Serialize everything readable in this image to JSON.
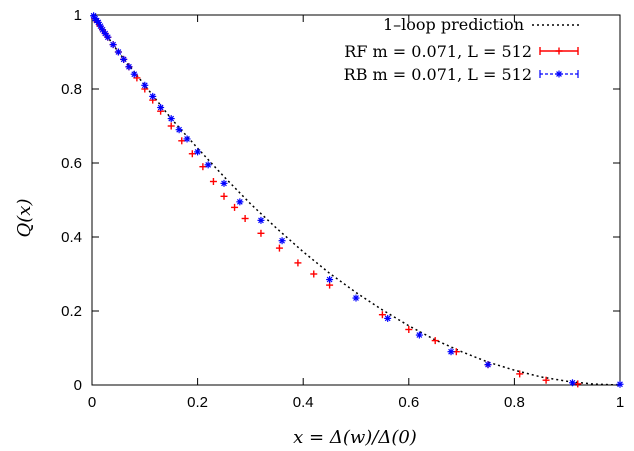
{
  "chart_data": {
    "type": "scatter",
    "xlabel": "x = Δ(w)/Δ(0)",
    "ylabel": "Q(x)",
    "xlim": [
      0,
      1
    ],
    "ylim": [
      0,
      1
    ],
    "xticks": [
      "0",
      "0.2",
      "0.4",
      "0.6",
      "0.8",
      "1"
    ],
    "yticks": [
      "0",
      "0.2",
      "0.4",
      "0.6",
      "0.8",
      "1"
    ],
    "legend_position": "top-right",
    "series": [
      {
        "name": "1–loop prediction",
        "style": "dotted-line",
        "color": "#000000",
        "x": [
          0,
          0.05,
          0.1,
          0.15,
          0.2,
          0.25,
          0.3,
          0.35,
          0.4,
          0.45,
          0.5,
          0.55,
          0.6,
          0.65,
          0.7,
          0.75,
          0.8,
          0.85,
          0.9,
          0.95,
          1.0
        ],
        "values": [
          1.0,
          0.9,
          0.81,
          0.72,
          0.64,
          0.563,
          0.49,
          0.423,
          0.36,
          0.302,
          0.25,
          0.203,
          0.16,
          0.122,
          0.09,
          0.062,
          0.04,
          0.022,
          0.01,
          0.0025,
          0.0
        ]
      },
      {
        "name": "RF m = 0.071, L = 512",
        "style": "plus",
        "color": "#ff0000",
        "x": [
          0.005,
          0.01,
          0.015,
          0.02,
          0.025,
          0.03,
          0.04,
          0.05,
          0.06,
          0.07,
          0.085,
          0.1,
          0.115,
          0.13,
          0.15,
          0.17,
          0.19,
          0.21,
          0.23,
          0.25,
          0.27,
          0.29,
          0.32,
          0.355,
          0.39,
          0.42,
          0.45,
          0.55,
          0.6,
          0.65,
          0.69,
          0.75,
          0.81,
          0.86,
          0.92
        ],
        "values": [
          0.99,
          0.98,
          0.97,
          0.96,
          0.95,
          0.94,
          0.92,
          0.9,
          0.88,
          0.86,
          0.83,
          0.8,
          0.77,
          0.74,
          0.7,
          0.66,
          0.625,
          0.59,
          0.55,
          0.51,
          0.48,
          0.45,
          0.41,
          0.37,
          0.33,
          0.3,
          0.27,
          0.19,
          0.15,
          0.12,
          0.09,
          0.055,
          0.03,
          0.013,
          0.003
        ]
      },
      {
        "name": "RB m = 0.071, L = 512",
        "style": "asterisk",
        "color": "#0000ff",
        "x": [
          0.003,
          0.006,
          0.009,
          0.012,
          0.016,
          0.02,
          0.025,
          0.03,
          0.04,
          0.05,
          0.06,
          0.07,
          0.08,
          0.1,
          0.115,
          0.13,
          0.15,
          0.165,
          0.18,
          0.2,
          0.22,
          0.25,
          0.28,
          0.32,
          0.36,
          0.45,
          0.5,
          0.56,
          0.62,
          0.68,
          0.75,
          0.91,
          1.0
        ],
        "values": [
          0.998,
          0.99,
          0.985,
          0.98,
          0.97,
          0.96,
          0.95,
          0.94,
          0.92,
          0.9,
          0.88,
          0.86,
          0.84,
          0.81,
          0.78,
          0.75,
          0.72,
          0.69,
          0.665,
          0.63,
          0.595,
          0.545,
          0.495,
          0.445,
          0.39,
          0.285,
          0.235,
          0.18,
          0.135,
          0.09,
          0.055,
          0.006,
          0.002
        ]
      }
    ]
  }
}
